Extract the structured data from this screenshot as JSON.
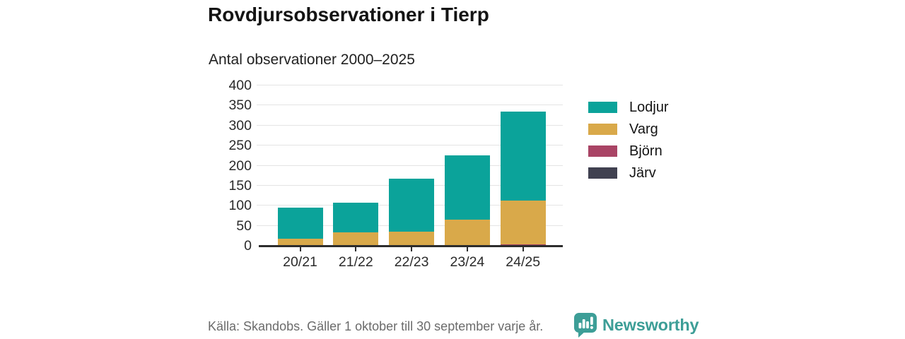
{
  "header": {
    "title": "Rovdjursobservationer i Tierp",
    "subtitle": "Antal observationer 2000–2025"
  },
  "chart_data": {
    "type": "bar",
    "stacked": true,
    "title": "Rovdjursobservationer i Tierp",
    "subtitle": "Antal observationer 2000–2025",
    "categories": [
      "20/21",
      "21/22",
      "22/23",
      "23/24",
      "24/25"
    ],
    "series": [
      {
        "name": "Lodjur",
        "color": "#0BA39A",
        "values": [
          77,
          75,
          133,
          161,
          223
        ]
      },
      {
        "name": "Varg",
        "color": "#D9A94A",
        "values": [
          18,
          33,
          35,
          65,
          108
        ]
      },
      {
        "name": "Björn",
        "color": "#A94465",
        "values": [
          0,
          0,
          0,
          0,
          3
        ]
      },
      {
        "name": "Järv",
        "color": "#404150",
        "values": [
          0,
          0,
          0,
          0,
          1
        ]
      }
    ],
    "totals": [
      95,
      108,
      168,
      226,
      335
    ],
    "xlabel": "",
    "ylabel": "",
    "ylim": [
      0,
      400
    ],
    "yticks": [
      0,
      50,
      100,
      150,
      200,
      250,
      300,
      350,
      400
    ],
    "grid": true,
    "legend_position": "right"
  },
  "footer": {
    "source": "Källa: Skandobs. Gäller 1 oktober till 30 september varje år.",
    "brand": "Newsworthy"
  },
  "colors": {
    "accent_teal": "#0BA39A",
    "gold": "#D9A94A",
    "maroon": "#A94465",
    "dark_slate": "#404150",
    "logo_teal": "#3D9E97",
    "text": "#141414",
    "muted_text": "#6B6B6B",
    "gridline": "#E4E4E4",
    "axis": "#2D2D2D"
  },
  "icons": {
    "brand_icon": "newsworthy-speech-bubble-barchart-icon"
  }
}
